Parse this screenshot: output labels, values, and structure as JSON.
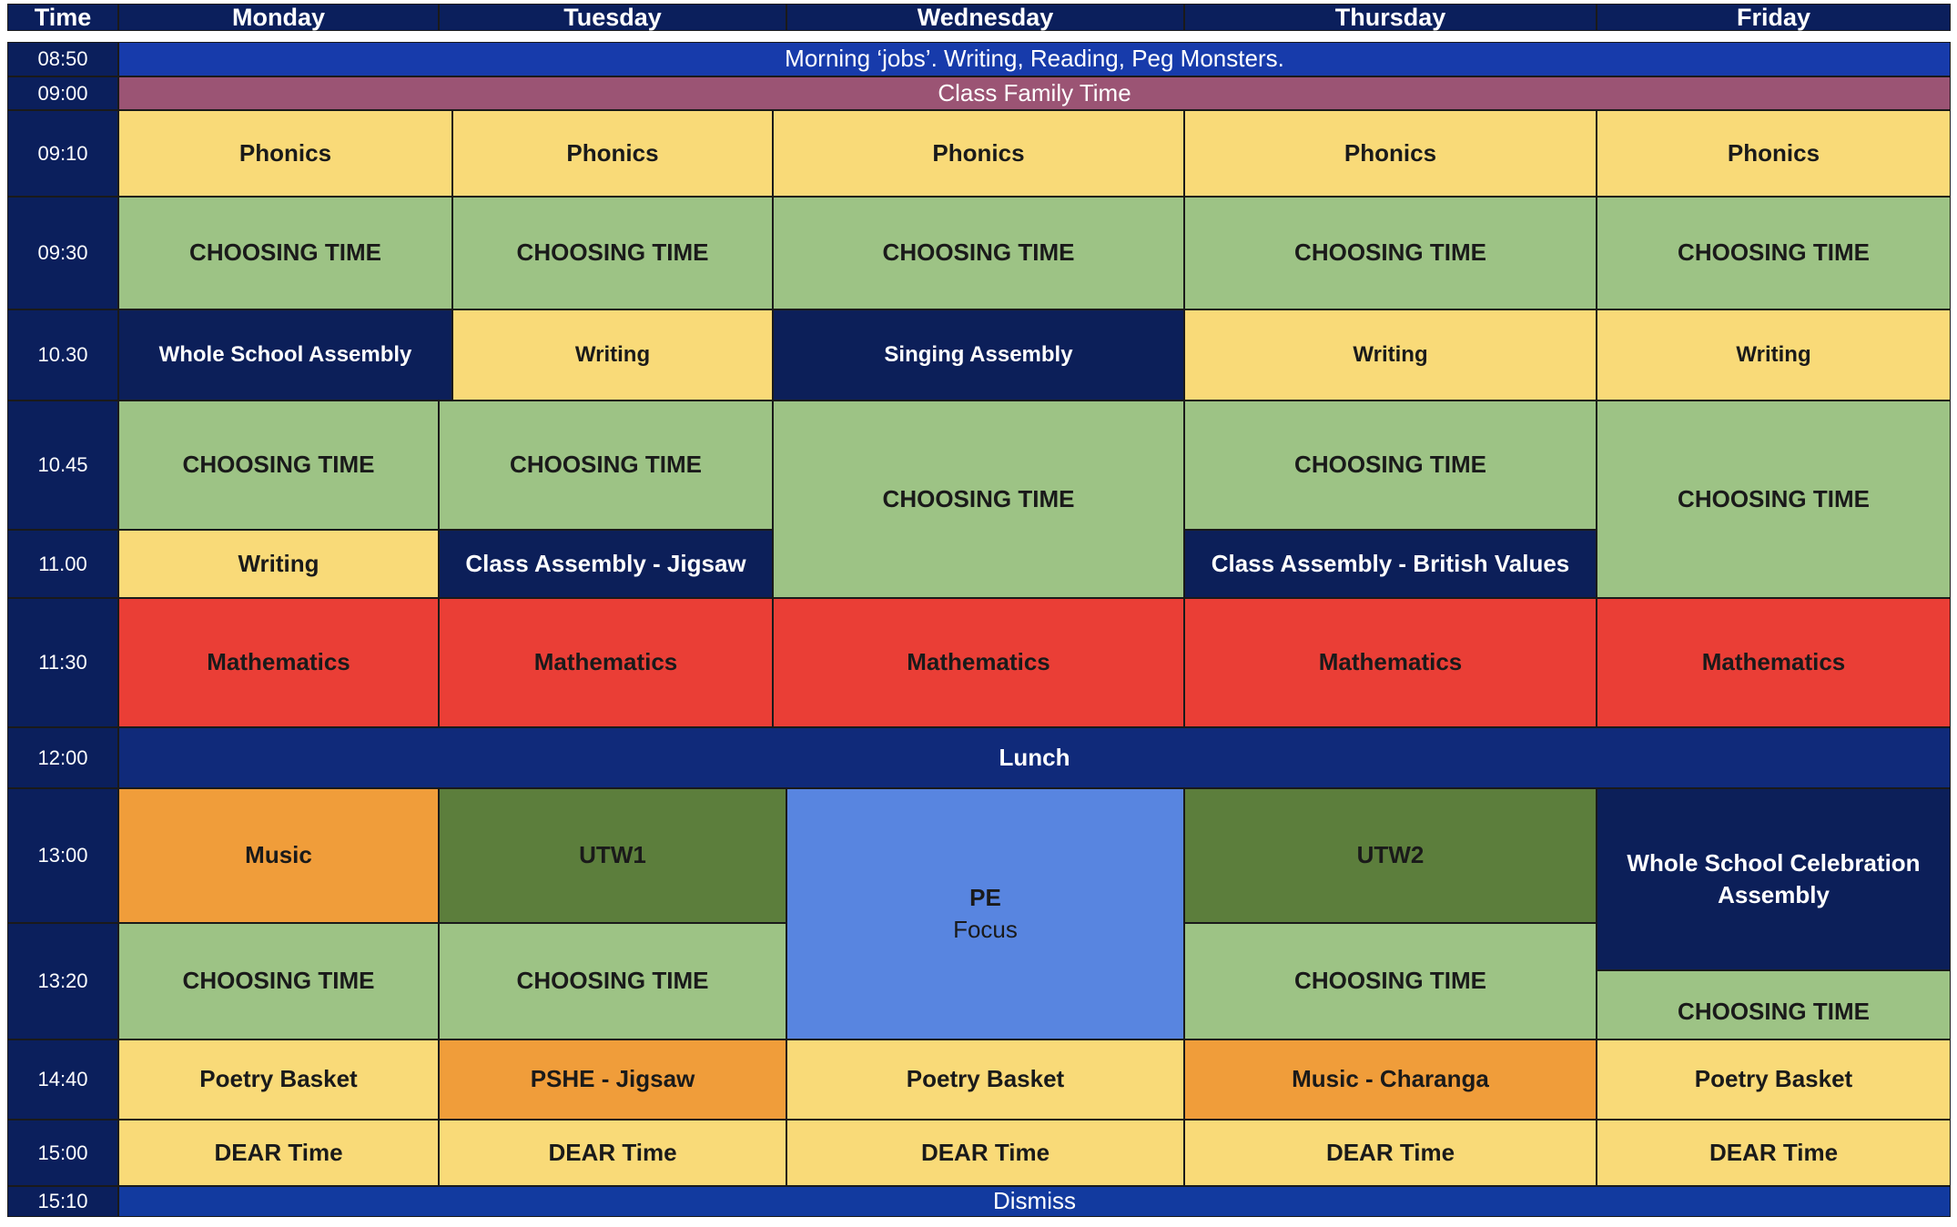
{
  "header": {
    "time": "Time",
    "days": [
      "Monday",
      "Tuesday",
      "Wednesday",
      "Thursday",
      "Friday"
    ]
  },
  "times": [
    "08:50",
    "09:00",
    "09:10",
    "09:30",
    "10.30",
    "10.45",
    "11.00",
    "11:30",
    "12:00",
    "13:00",
    "13:20",
    "14:40",
    "15:00",
    "15:10"
  ],
  "banners": {
    "morning": "Morning ‘jobs’. Writing, Reading, Peg Monsters.",
    "family": "Class Family Time",
    "lunch": "Lunch",
    "dismiss": "Dismiss"
  },
  "monday": {
    "phonics": "Phonics",
    "choosing1": "CHOOSING TIME",
    "assembly": "Whole School Assembly",
    "choosing2": "CHOOSING TIME",
    "writing": "Writing",
    "maths": "Mathematics",
    "music": "Music",
    "choosing3": "CHOOSING TIME",
    "poetry": "Poetry Basket",
    "dear": "DEAR Time"
  },
  "tuesday": {
    "phonics": "Phonics",
    "choosing1": "CHOOSING TIME",
    "writing": "Writing",
    "choosing2": "CHOOSING TIME",
    "assembly": "Class Assembly - Jigsaw",
    "maths": "Mathematics",
    "utw": "UTW1",
    "choosing3": "CHOOSING TIME",
    "pshe": "PSHE - Jigsaw",
    "dear": "DEAR Time"
  },
  "wednesday": {
    "phonics": "Phonics",
    "choosing1": "CHOOSING TIME",
    "assembly": "Singing Assembly",
    "choosing2": "CHOOSING TIME",
    "maths": "Mathematics",
    "pe": "PE",
    "pe_sub": "Focus",
    "poetry": "Poetry Basket",
    "dear": "DEAR Time"
  },
  "thursday": {
    "phonics": "Phonics",
    "choosing1": "CHOOSING TIME",
    "writing": "Writing",
    "choosing2": "CHOOSING TIME",
    "assembly": "Class Assembly - British Values",
    "maths": "Mathematics",
    "utw": "UTW2",
    "choosing3": "CHOOSING TIME",
    "music": "Music - Charanga",
    "dear": "DEAR Time"
  },
  "friday": {
    "phonics": "Phonics",
    "choosing1": "CHOOSING TIME",
    "writing": "Writing",
    "choosing2": "CHOOSING TIME",
    "maths": "Mathematics",
    "celebration": "Whole School Celebration Assembly",
    "choosing3": "CHOOSING TIME",
    "poetry": "Poetry Basket",
    "dear": "DEAR Time"
  }
}
